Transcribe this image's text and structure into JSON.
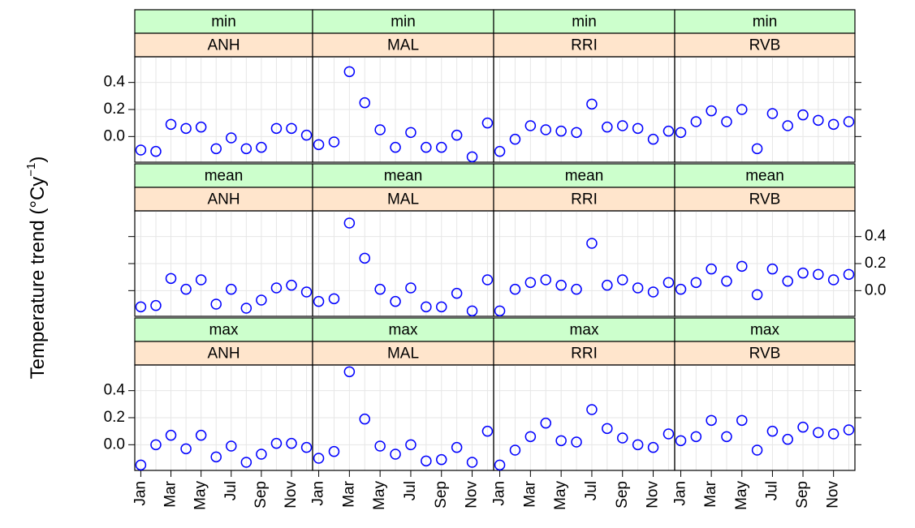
{
  "chart_data": {
    "type": "scatter",
    "ylabel": {
      "text": "Temperature trend (°Cy",
      "superscript": "−1",
      "close": ")"
    },
    "x": [
      1,
      2,
      3,
      4,
      5,
      6,
      7,
      8,
      9,
      10,
      11,
      12
    ],
    "xlim": [
      0.6,
      12.4
    ],
    "xticks": [
      {
        "value": 1,
        "label": "Jan"
      },
      {
        "value": 3,
        "label": "Mar"
      },
      {
        "value": 5,
        "label": "May"
      },
      {
        "value": 7,
        "label": "Jul"
      },
      {
        "value": 9,
        "label": "Sep"
      },
      {
        "value": 11,
        "label": "Nov"
      }
    ],
    "ylim": [
      -0.19,
      0.59
    ],
    "yticks": [
      {
        "value": 0,
        "label": "0.0"
      },
      {
        "value": 0.2,
        "label": "0.2"
      },
      {
        "value": 0.4,
        "label": "0.4"
      }
    ],
    "ytick_label_side": [
      "left",
      "right",
      "left"
    ],
    "grid": true,
    "color": "#0000ff",
    "panels": [
      {
        "strips": [
          "min",
          "ANH"
        ],
        "values": [
          -0.1,
          -0.11,
          0.09,
          0.06,
          0.07,
          -0.09,
          -0.01,
          -0.09,
          -0.08,
          0.06,
          0.06,
          0.01
        ]
      },
      {
        "strips": [
          "min",
          "MAL"
        ],
        "values": [
          -0.06,
          -0.04,
          0.48,
          0.25,
          0.05,
          -0.08,
          0.03,
          -0.08,
          -0.08,
          0.01,
          -0.15,
          0.1
        ]
      },
      {
        "strips": [
          "min",
          "RRI"
        ],
        "values": [
          -0.11,
          -0.02,
          0.08,
          0.05,
          0.04,
          0.03,
          0.24,
          0.07,
          0.08,
          0.06,
          -0.02,
          0.04
        ]
      },
      {
        "strips": [
          "min",
          "RVB"
        ],
        "values": [
          0.03,
          0.11,
          0.19,
          0.11,
          0.2,
          -0.09,
          0.17,
          0.08,
          0.16,
          0.12,
          0.09,
          0.11
        ]
      },
      {
        "strips": [
          "mean",
          "ANH"
        ],
        "values": [
          -0.12,
          -0.11,
          0.09,
          0.01,
          0.08,
          -0.1,
          0.01,
          -0.13,
          -0.07,
          0.02,
          0.04,
          -0.01
        ]
      },
      {
        "strips": [
          "mean",
          "MAL"
        ],
        "values": [
          -0.08,
          -0.06,
          0.5,
          0.24,
          0.01,
          -0.08,
          0.02,
          -0.12,
          -0.12,
          -0.02,
          -0.15,
          0.08
        ]
      },
      {
        "strips": [
          "mean",
          "RRI"
        ],
        "values": [
          -0.15,
          0.01,
          0.06,
          0.08,
          0.04,
          0.01,
          0.35,
          0.04,
          0.08,
          0.02,
          -0.01,
          0.06
        ]
      },
      {
        "strips": [
          "mean",
          "RVB"
        ],
        "values": [
          0.01,
          0.06,
          0.16,
          0.07,
          0.18,
          -0.03,
          0.16,
          0.07,
          0.13,
          0.12,
          0.08,
          0.12
        ]
      },
      {
        "strips": [
          "max",
          "ANH"
        ],
        "values": [
          -0.15,
          0.0,
          0.07,
          -0.03,
          0.07,
          -0.09,
          -0.01,
          -0.13,
          -0.07,
          0.01,
          0.01,
          -0.02
        ]
      },
      {
        "strips": [
          "max",
          "MAL"
        ],
        "values": [
          -0.1,
          -0.05,
          0.54,
          0.19,
          -0.01,
          -0.07,
          0.0,
          -0.12,
          -0.11,
          -0.02,
          -0.13,
          0.1
        ]
      },
      {
        "strips": [
          "max",
          "RRI"
        ],
        "values": [
          -0.15,
          -0.04,
          0.06,
          0.16,
          0.03,
          0.02,
          0.26,
          0.12,
          0.05,
          0.0,
          -0.02,
          0.08
        ]
      },
      {
        "strips": [
          "max",
          "RVB"
        ],
        "values": [
          0.03,
          0.06,
          0.18,
          0.06,
          0.18,
          -0.04,
          0.1,
          0.04,
          0.13,
          0.09,
          0.08,
          0.11
        ]
      }
    ]
  }
}
